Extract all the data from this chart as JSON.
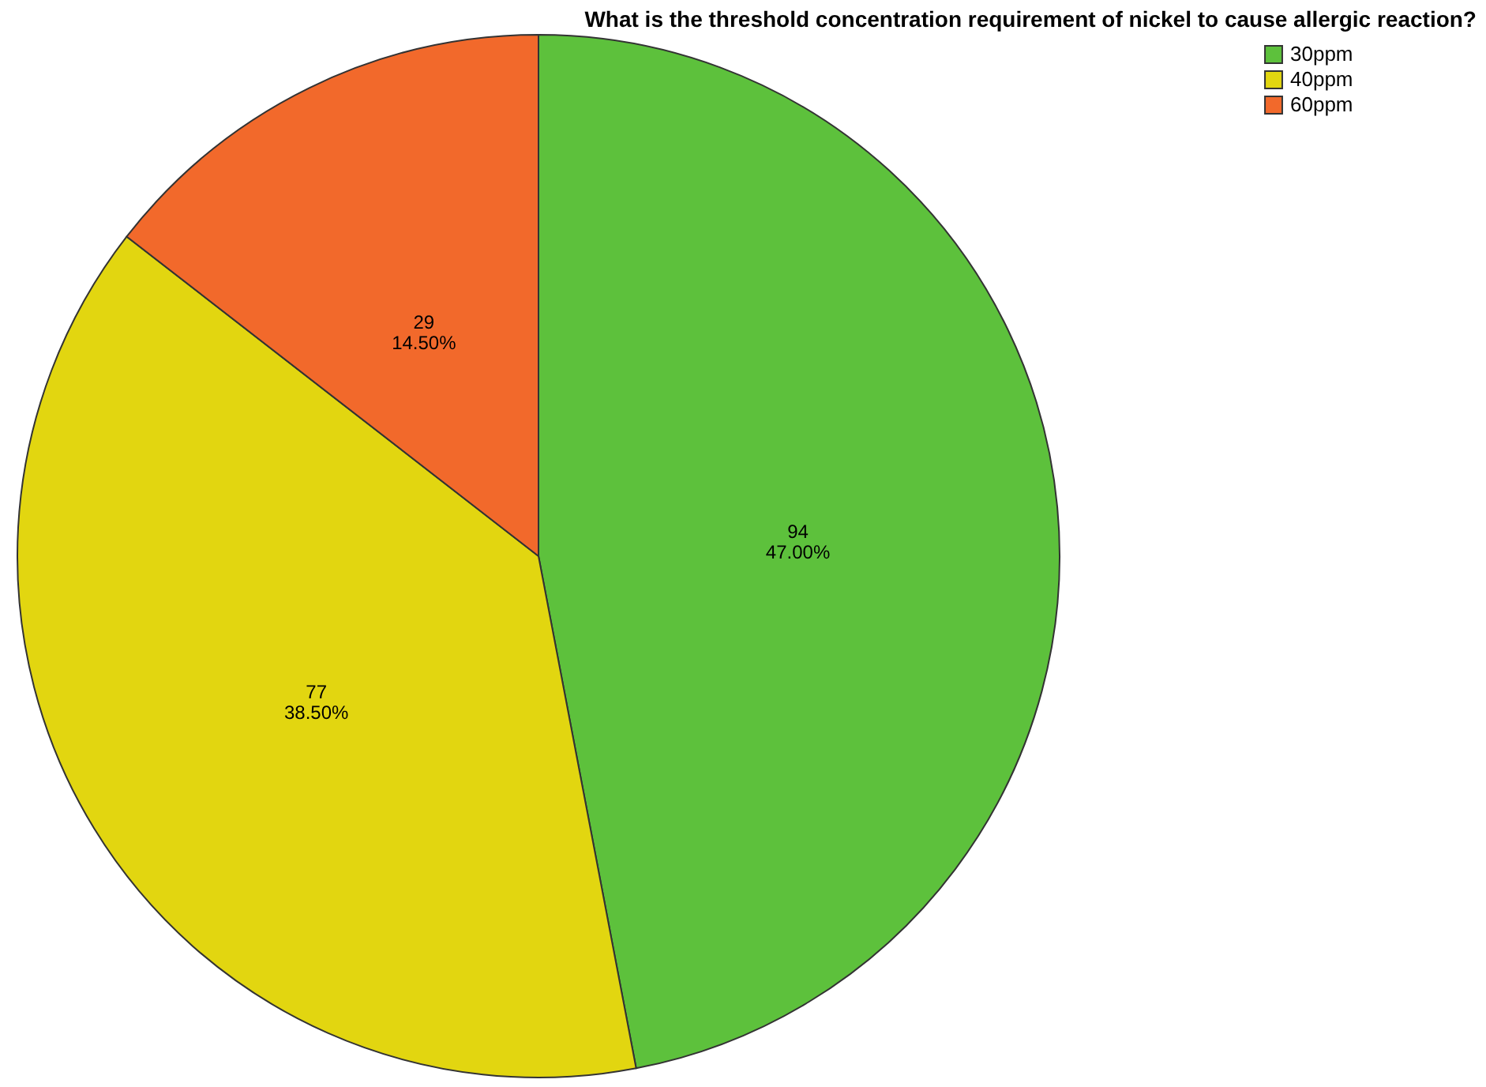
{
  "chart_data": {
    "type": "pie",
    "title": "What is the threshold concentration requirement of nickel to cause allergic reaction?",
    "categories": [
      "30ppm",
      "40ppm",
      "60ppm"
    ],
    "values": [
      94,
      77,
      29
    ],
    "colors": [
      "#5dc13c",
      "#e2d610",
      "#f2692b"
    ],
    "value_labels": [
      "94\n47.00%",
      "77\n38.50%",
      "29\n14.50%"
    ],
    "legend": "top right"
  }
}
